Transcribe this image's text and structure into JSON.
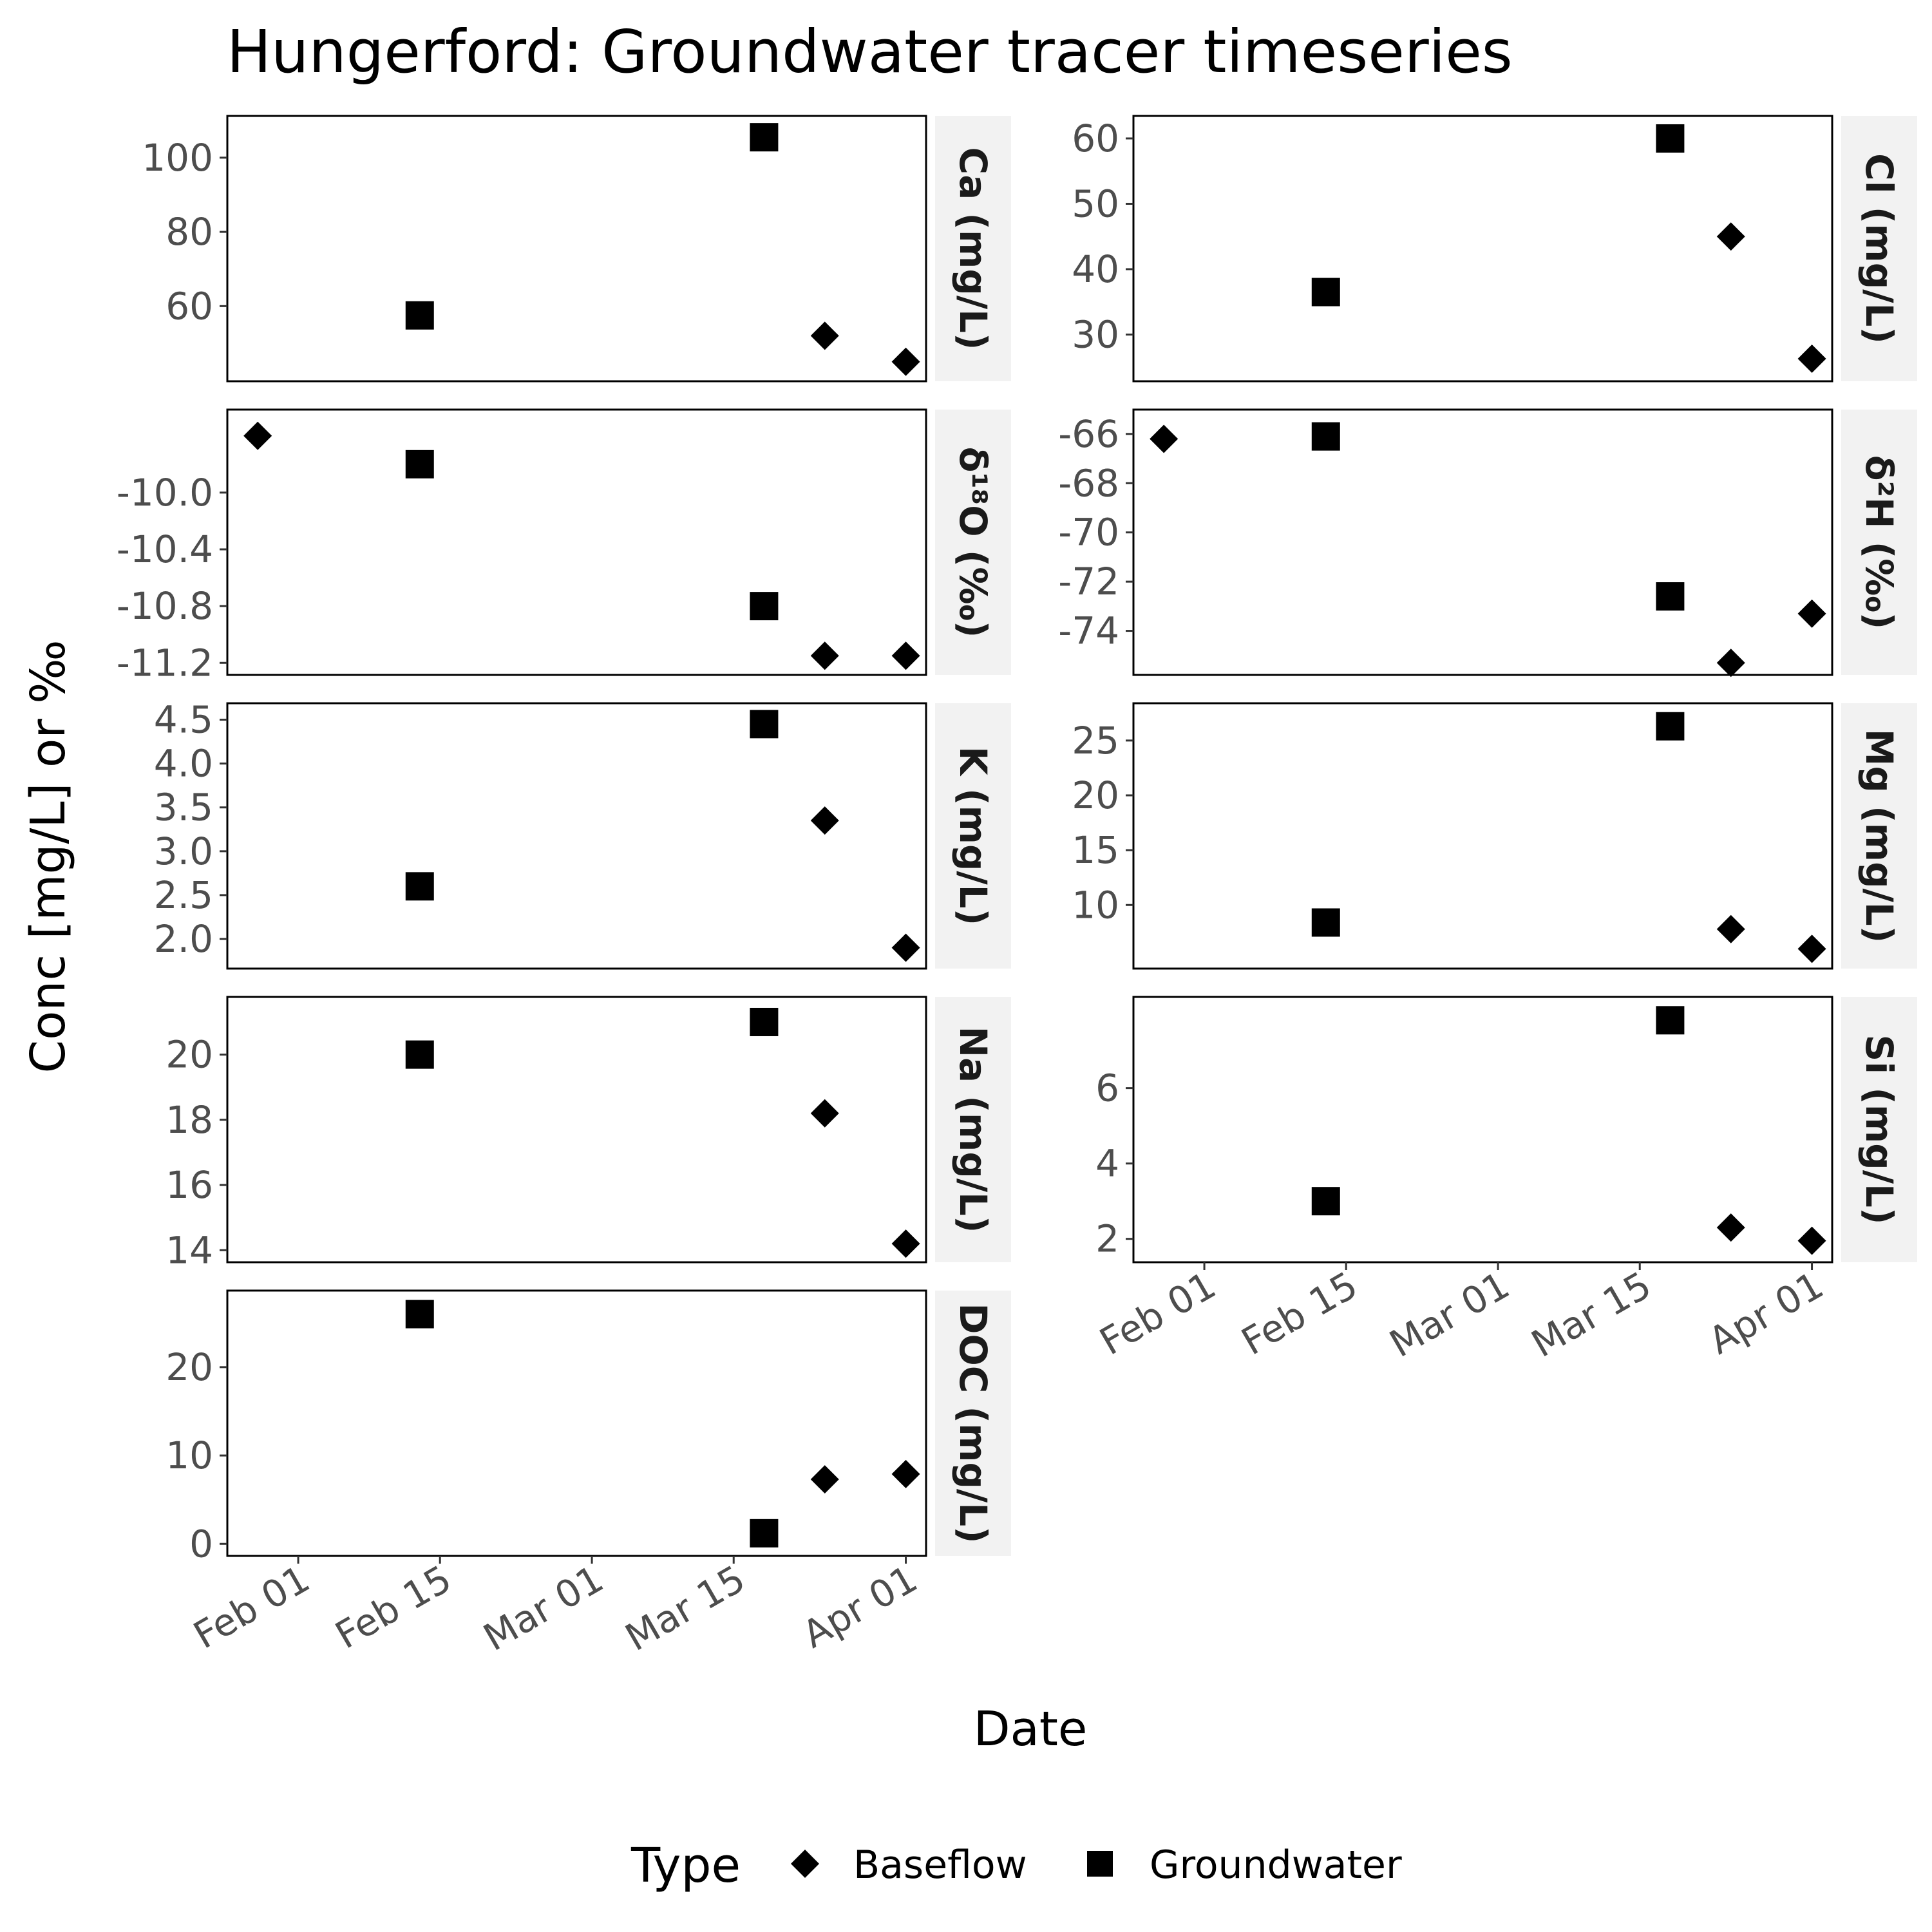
{
  "chart_data": {
    "type": "scatter",
    "title": "Hungerford: Groundwater tracer timeseries",
    "xlabel": "Date",
    "ylabel": "Conc [mg/L] or ‰",
    "x_axis": {
      "type": "date",
      "range": [
        "2024-01-25",
        "2024-04-03"
      ],
      "ticks": [
        "2024-02-01",
        "2024-02-15",
        "2024-03-01",
        "2024-03-15",
        "2024-04-01"
      ],
      "tick_labels": [
        "Feb 01",
        "Feb 15",
        "Mar 01",
        "Mar 15",
        "Apr 01"
      ]
    },
    "legend": {
      "title": "Type",
      "position": "bottom",
      "entries": [
        {
          "label": "Baseflow",
          "shape": "diamond"
        },
        {
          "label": "Groundwater",
          "shape": "square"
        }
      ]
    },
    "grid": false,
    "facets": [
      {
        "label": "Ca (mg/L)",
        "ylim": [
          43,
          108
        ],
        "yticks": [
          60,
          80,
          100
        ],
        "ytick_labels": [
          "60",
          "80",
          "100"
        ],
        "points": [
          {
            "type": "Groundwater",
            "x": "2024-02-13",
            "y": 57.5
          },
          {
            "type": "Groundwater",
            "x": "2024-03-18",
            "y": 105.5
          },
          {
            "type": "Baseflow",
            "x": "2024-03-24",
            "y": 52
          },
          {
            "type": "Baseflow",
            "x": "2024-04-01",
            "y": 45
          }
        ]
      },
      {
        "label": "Cl (mg/L)",
        "ylim": [
          24.7,
          61.6
        ],
        "yticks": [
          30,
          40,
          50,
          60
        ],
        "ytick_labels": [
          "30",
          "40",
          "50",
          "60"
        ],
        "points": [
          {
            "type": "Groundwater",
            "x": "2024-02-13",
            "y": 36.5
          },
          {
            "type": "Groundwater",
            "x": "2024-03-18",
            "y": 60
          },
          {
            "type": "Baseflow",
            "x": "2024-03-24",
            "y": 45
          },
          {
            "type": "Baseflow",
            "x": "2024-04-01",
            "y": 26.3
          }
        ]
      },
      {
        "label": "δ¹⁸O (‰)",
        "ylim": [
          -11.2,
          -9.5
        ],
        "yticks": [
          -11.2,
          -10.8,
          -10.4,
          -10.0
        ],
        "ytick_labels": [
          "-11.2",
          "-10.8",
          "-10.4",
          "-10.0"
        ],
        "points": [
          {
            "type": "Baseflow",
            "x": "2024-01-28",
            "y": -9.6
          },
          {
            "type": "Groundwater",
            "x": "2024-02-13",
            "y": -9.8
          },
          {
            "type": "Groundwater",
            "x": "2024-03-18",
            "y": -10.8
          },
          {
            "type": "Baseflow",
            "x": "2024-03-24",
            "y": -11.15
          },
          {
            "type": "Baseflow",
            "x": "2024-04-01",
            "y": -11.15
          }
        ]
      },
      {
        "label": "δ²H (‰)",
        "ylim": [
          -75.3,
          -65.5
        ],
        "yticks": [
          -74,
          -72,
          -70,
          -68,
          -66
        ],
        "ytick_labels": [
          "-74",
          "-72",
          "-70",
          "-68",
          "-66"
        ],
        "points": [
          {
            "type": "Baseflow",
            "x": "2024-01-28",
            "y": -66.2
          },
          {
            "type": "Groundwater",
            "x": "2024-02-13",
            "y": -66.1
          },
          {
            "type": "Groundwater",
            "x": "2024-03-18",
            "y": -72.6
          },
          {
            "type": "Baseflow",
            "x": "2024-03-24",
            "y": -75.3
          },
          {
            "type": "Baseflow",
            "x": "2024-04-01",
            "y": -73.3
          }
        ]
      },
      {
        "label": "K (mg/L)",
        "ylim": [
          1.8,
          4.55
        ],
        "yticks": [
          2.0,
          2.5,
          3.0,
          3.5,
          4.0,
          4.5
        ],
        "ytick_labels": [
          "2.0",
          "2.5",
          "3.0",
          "3.5",
          "4.0",
          "4.5"
        ],
        "points": [
          {
            "type": "Groundwater",
            "x": "2024-02-13",
            "y": 2.6
          },
          {
            "type": "Groundwater",
            "x": "2024-03-18",
            "y": 4.45
          },
          {
            "type": "Baseflow",
            "x": "2024-03-24",
            "y": 3.35
          },
          {
            "type": "Baseflow",
            "x": "2024-04-01",
            "y": 1.9
          }
        ]
      },
      {
        "label": "Mg (mg/L)",
        "ylim": [
          5.3,
          27.3
        ],
        "yticks": [
          10,
          15,
          20,
          25
        ],
        "ytick_labels": [
          "10",
          "15",
          "20",
          "25"
        ],
        "points": [
          {
            "type": "Groundwater",
            "x": "2024-02-13",
            "y": 8.4
          },
          {
            "type": "Groundwater",
            "x": "2024-03-18",
            "y": 26.3
          },
          {
            "type": "Baseflow",
            "x": "2024-03-24",
            "y": 7.8
          },
          {
            "type": "Baseflow",
            "x": "2024-04-01",
            "y": 6
          }
        ]
      },
      {
        "label": "Na (mg/L)",
        "ylim": [
          14,
          21.4
        ],
        "yticks": [
          14,
          16,
          18,
          20
        ],
        "ytick_labels": [
          "14",
          "16",
          "18",
          "20"
        ],
        "points": [
          {
            "type": "Groundwater",
            "x": "2024-02-13",
            "y": 20
          },
          {
            "type": "Groundwater",
            "x": "2024-03-18",
            "y": 21
          },
          {
            "type": "Baseflow",
            "x": "2024-03-24",
            "y": 18.2
          },
          {
            "type": "Baseflow",
            "x": "2024-04-01",
            "y": 14.2
          }
        ]
      },
      {
        "label": "Si (mg/L)",
        "ylim": [
          1.7,
          8.1
        ],
        "yticks": [
          2,
          4,
          6
        ],
        "ytick_labels": [
          "2",
          "4",
          "6"
        ],
        "points": [
          {
            "type": "Groundwater",
            "x": "2024-02-13",
            "y": 3
          },
          {
            "type": "Groundwater",
            "x": "2024-03-18",
            "y": 7.8
          },
          {
            "type": "Baseflow",
            "x": "2024-03-24",
            "y": 2.3
          },
          {
            "type": "Baseflow",
            "x": "2024-04-01",
            "y": 1.95
          }
        ]
      },
      {
        "label": "DOC (mg/L)",
        "ylim": [
          0,
          27.3
        ],
        "yticks": [
          0,
          10,
          20
        ],
        "ytick_labels": [
          "0",
          "10",
          "20"
        ],
        "points": [
          {
            "type": "Groundwater",
            "x": "2024-02-13",
            "y": 26
          },
          {
            "type": "Groundwater",
            "x": "2024-03-18",
            "y": 1.2
          },
          {
            "type": "Baseflow",
            "x": "2024-03-24",
            "y": 7.3
          },
          {
            "type": "Baseflow",
            "x": "2024-04-01",
            "y": 7.9
          }
        ]
      }
    ]
  }
}
